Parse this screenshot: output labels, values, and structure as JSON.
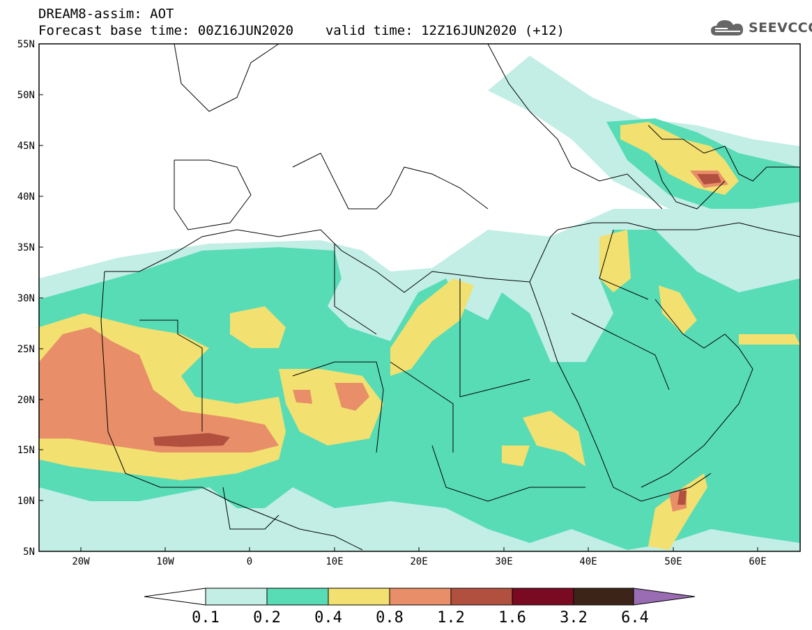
{
  "title_line1": "DREAM8-assim: AOT",
  "title_line2_base": "Forecast base time: 00Z16JUN2020",
  "title_line2_valid": "valid time: 12Z16JUN2020 (+12)",
  "logo_text": "SEEVCCC",
  "map": {
    "lon_range": [
      -25,
      65
    ],
    "lat_range": [
      5,
      55
    ],
    "lat_ticks": [
      "55N",
      "50N",
      "45N",
      "40N",
      "35N",
      "30N",
      "25N",
      "20N",
      "15N",
      "10N",
      "5N"
    ],
    "lon_ticks": [
      "20W",
      "10W",
      "0",
      "10E",
      "20E",
      "30E",
      "40E",
      "50E",
      "60E"
    ]
  },
  "colorbar": {
    "labels": [
      "0.1",
      "0.2",
      "0.4",
      "0.8",
      "1.2",
      "1.6",
      "3.2",
      "6.4"
    ],
    "colors": [
      "#c2eee6",
      "#58dcb6",
      "#f2e070",
      "#e88e68",
      "#b25040",
      "#7a0a22",
      "#3c2418",
      "#9a6cb4"
    ]
  },
  "colors": {
    "c1": "#c2eee6",
    "c2": "#58dcb6",
    "c3": "#f2e070",
    "c4": "#e88e68",
    "c5": "#b25040"
  }
}
